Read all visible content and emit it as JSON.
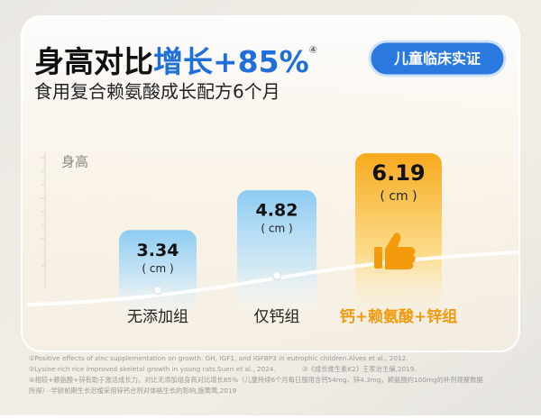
{
  "chart_data": {
    "type": "bar",
    "title_prefix": "身高对比",
    "title_highlight": "增长+85%",
    "title_ref": "④",
    "subtitle": "食用复合赖氨酸成长配方6个月",
    "badge": "儿童临床实证",
    "y_axis_label": "身高",
    "unit_label": "( cm )",
    "categories": [
      "无添加组",
      "仅钙组",
      "钙+赖氨酸+锌组"
    ],
    "values": [
      3.34,
      4.82,
      6.19
    ],
    "colors": [
      "#a7d6f4",
      "#a7d6f4",
      "#f8b431"
    ],
    "ylim": [
      0,
      7
    ],
    "footnotes": [
      "①Positive effects of zinc supplementation on growth, GH, IGF1, and IGFBP3 in eutrophic children.Alves et al., 2012.",
      "②Lysine-rich rice improved skeletal growth in young rats.Suen et al., 2024.",
      "③《成长维生素K2》王家治主编,2019.",
      "④相较+赖氨酸+锌有助于激活成长力。对比无添加组身高对比增长85%（儿童持续6个月每日服用含钙54mg，锌4.3mg，赖氨酸约100mg的补剂观察数据",
      "所得）-学龄前期生长迟缓采用锌钙合剂对体格生长的影响,施莺莺,2019"
    ]
  }
}
